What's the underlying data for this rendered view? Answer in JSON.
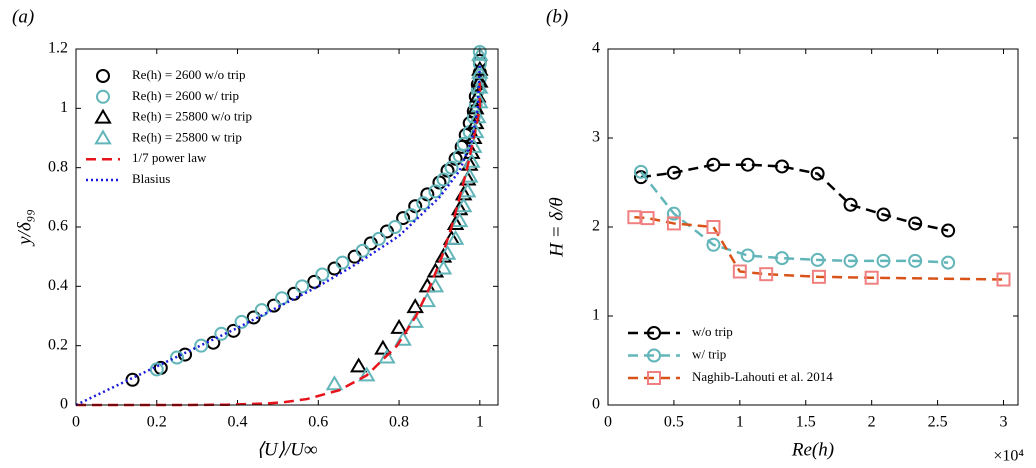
{
  "chart_data": [
    {
      "type": "line",
      "panel_label": "(a)",
      "xlabel": "⟨U⟩/U∞",
      "ylabel": "y/δ₉₉",
      "xlim": [
        0,
        1.045
      ],
      "ylim": [
        0,
        1.2
      ],
      "xticks": [
        0,
        0.2,
        0.4,
        0.6,
        0.8,
        1
      ],
      "yticks": [
        0,
        0.2,
        0.4,
        0.6,
        0.8,
        1,
        1.2
      ],
      "legend": "upper left",
      "series": [
        {
          "name": "Re(h) = 2600 w/o trip",
          "color": "#000000",
          "marker": "circle",
          "line": "none",
          "x": [
            0.14,
            0.21,
            0.27,
            0.34,
            0.39,
            0.44,
            0.49,
            0.54,
            0.59,
            0.64,
            0.69,
            0.73,
            0.77,
            0.81,
            0.84,
            0.87,
            0.9,
            0.92,
            0.94,
            0.955,
            0.965,
            0.975,
            0.985,
            0.99,
            0.995,
            1.0,
            1.0
          ],
          "values": [
            0.085,
            0.125,
            0.17,
            0.21,
            0.25,
            0.295,
            0.335,
            0.375,
            0.415,
            0.46,
            0.5,
            0.545,
            0.585,
            0.63,
            0.67,
            0.71,
            0.75,
            0.79,
            0.83,
            0.87,
            0.91,
            0.95,
            0.99,
            1.04,
            1.08,
            1.12,
            1.16
          ]
        },
        {
          "name": "Re(h) = 2600 w/ trip",
          "color": "#62b5b9",
          "marker": "circle",
          "line": "none",
          "x": [
            0.2,
            0.25,
            0.31,
            0.36,
            0.41,
            0.46,
            0.51,
            0.56,
            0.61,
            0.66,
            0.71,
            0.75,
            0.79,
            0.83,
            0.86,
            0.89,
            0.91,
            0.93,
            0.95,
            0.96,
            0.975,
            0.985,
            0.99,
            0.995,
            1.0,
            1.0,
            1.0
          ],
          "values": [
            0.12,
            0.16,
            0.2,
            0.24,
            0.28,
            0.32,
            0.36,
            0.4,
            0.44,
            0.48,
            0.52,
            0.56,
            0.6,
            0.64,
            0.68,
            0.72,
            0.76,
            0.8,
            0.84,
            0.88,
            0.92,
            0.97,
            1.01,
            1.06,
            1.1,
            1.15,
            1.19
          ]
        },
        {
          "name": "Re(h) = 25800 w/o trip",
          "color": "#000000",
          "marker": "triangle",
          "line": "none",
          "x": [
            0.7,
            0.76,
            0.8,
            0.84,
            0.87,
            0.89,
            0.91,
            0.93,
            0.94,
            0.95,
            0.96,
            0.97,
            0.975,
            0.98,
            0.985,
            0.99,
            0.99,
            0.995,
            1.0,
            1.0
          ],
          "values": [
            0.13,
            0.19,
            0.26,
            0.33,
            0.4,
            0.45,
            0.5,
            0.56,
            0.61,
            0.66,
            0.71,
            0.76,
            0.81,
            0.85,
            0.9,
            0.95,
            1.0,
            1.04,
            1.09,
            1.13
          ]
        },
        {
          "name": "Re(h) = 25800 w trip",
          "color": "#62b5b9",
          "marker": "triangle",
          "line": "none",
          "x": [
            0.64,
            0.72,
            0.77,
            0.81,
            0.84,
            0.87,
            0.89,
            0.91,
            0.92,
            0.94,
            0.95,
            0.96,
            0.97,
            0.975,
            0.98,
            0.985,
            0.99,
            0.995,
            1.0,
            1.0,
            1.0,
            1.0
          ],
          "values": [
            0.07,
            0.1,
            0.16,
            0.22,
            0.28,
            0.35,
            0.4,
            0.46,
            0.51,
            0.56,
            0.62,
            0.67,
            0.72,
            0.77,
            0.82,
            0.87,
            0.92,
            0.97,
            1.02,
            1.07,
            1.12,
            1.18
          ]
        },
        {
          "name": "1/7 power law",
          "color": "#e8141c",
          "marker": null,
          "line": "dashed",
          "x": [
            0,
            0.268,
            0.373,
            0.469,
            0.518,
            0.572,
            0.652,
            0.72,
            0.795,
            0.842,
            0.877,
            0.906,
            0.93,
            0.95,
            0.969,
            0.985,
            1.0,
            1.0
          ],
          "values": [
            0,
            0.0001,
            0.001,
            0.005,
            0.01,
            0.02,
            0.05,
            0.1,
            0.2,
            0.3,
            0.4,
            0.5,
            0.6,
            0.7,
            0.8,
            0.9,
            1.0,
            1.1
          ]
        },
        {
          "name": "Blasius",
          "color": "#1a1adf",
          "marker": null,
          "line": "dotted",
          "x": [
            0,
            0.2,
            0.4,
            0.6,
            0.7,
            0.8,
            0.9,
            0.95,
            0.98,
            0.995,
            1.0
          ],
          "values": [
            0,
            0.13,
            0.26,
            0.4,
            0.48,
            0.57,
            0.7,
            0.79,
            0.89,
            1.0,
            1.15
          ]
        }
      ]
    },
    {
      "type": "line",
      "panel_label": "(b)",
      "xlabel": "Re(h)",
      "ylabel": "H = δ/θ",
      "x_offset_text": "×10⁴",
      "xlim": [
        0,
        31100
      ],
      "ylim": [
        0,
        4
      ],
      "xticks": [
        0,
        {
          "value": 5000,
          "label": "0.5"
        },
        {
          "value": 10000,
          "label": "1"
        },
        {
          "value": 15000,
          "label": "1.5"
        },
        {
          "value": 20000,
          "label": "2"
        },
        {
          "value": 25000,
          "label": "2.5"
        },
        {
          "value": 30000,
          "label": "3"
        }
      ],
      "yticks": [
        0,
        1,
        2,
        3,
        4
      ],
      "legend": "lower left",
      "series": [
        {
          "name": "w/o trip",
          "color": "#000000",
          "marker": "circle",
          "line": "dashed",
          "x": [
            2500,
            5000,
            8000,
            10600,
            13200,
            15900,
            18400,
            20900,
            23300,
            25800
          ],
          "values": [
            2.56,
            2.61,
            2.7,
            2.7,
            2.68,
            2.6,
            2.25,
            2.14,
            2.04,
            1.96
          ]
        },
        {
          "name": "w/ trip",
          "color": "#62b5b9",
          "marker": "circle",
          "line": "dashed",
          "x": [
            2500,
            5000,
            8000,
            10600,
            13200,
            15900,
            18400,
            20900,
            23300,
            25800
          ],
          "values": [
            2.62,
            2.15,
            1.8,
            1.68,
            1.65,
            1.63,
            1.62,
            1.62,
            1.62,
            1.6
          ]
        },
        {
          "name": "Naghib-Lahouti et al. 2014",
          "color": "#d95319",
          "marker_color": "#f08080",
          "marker": "square",
          "line": "dashed",
          "x": [
            2000,
            3000,
            5000,
            8000,
            10000,
            12000,
            16000,
            20000,
            30000
          ],
          "values": [
            2.11,
            2.1,
            2.04,
            2.0,
            1.5,
            1.47,
            1.44,
            1.43,
            1.41
          ]
        }
      ]
    }
  ]
}
